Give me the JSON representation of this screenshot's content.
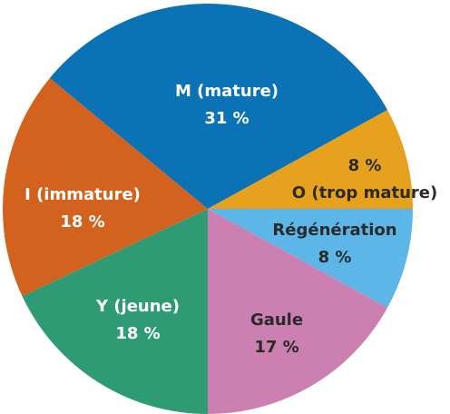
{
  "chart_data": {
    "type": "pie",
    "categories": [
      "Régénération",
      "Gaule",
      "Y (jeune)",
      "I (immature)",
      "M (mature)",
      "O (trop mature)"
    ],
    "values": [
      8,
      17,
      18,
      18,
      31,
      8
    ],
    "value_labels": [
      "8 %",
      "17 %",
      "18 %",
      "18 %",
      "31 %",
      "8 %"
    ],
    "colors": [
      "#5cb6e8",
      "#cc7fb1",
      "#2f9b74",
      "#d4621f",
      "#0b72b5",
      "#e6a11e"
    ],
    "label_colors": [
      "#2a2a2a",
      "#2a2a2a",
      "#ffffff",
      "#ffffff",
      "#ffffff",
      "#2a2a2a"
    ]
  }
}
